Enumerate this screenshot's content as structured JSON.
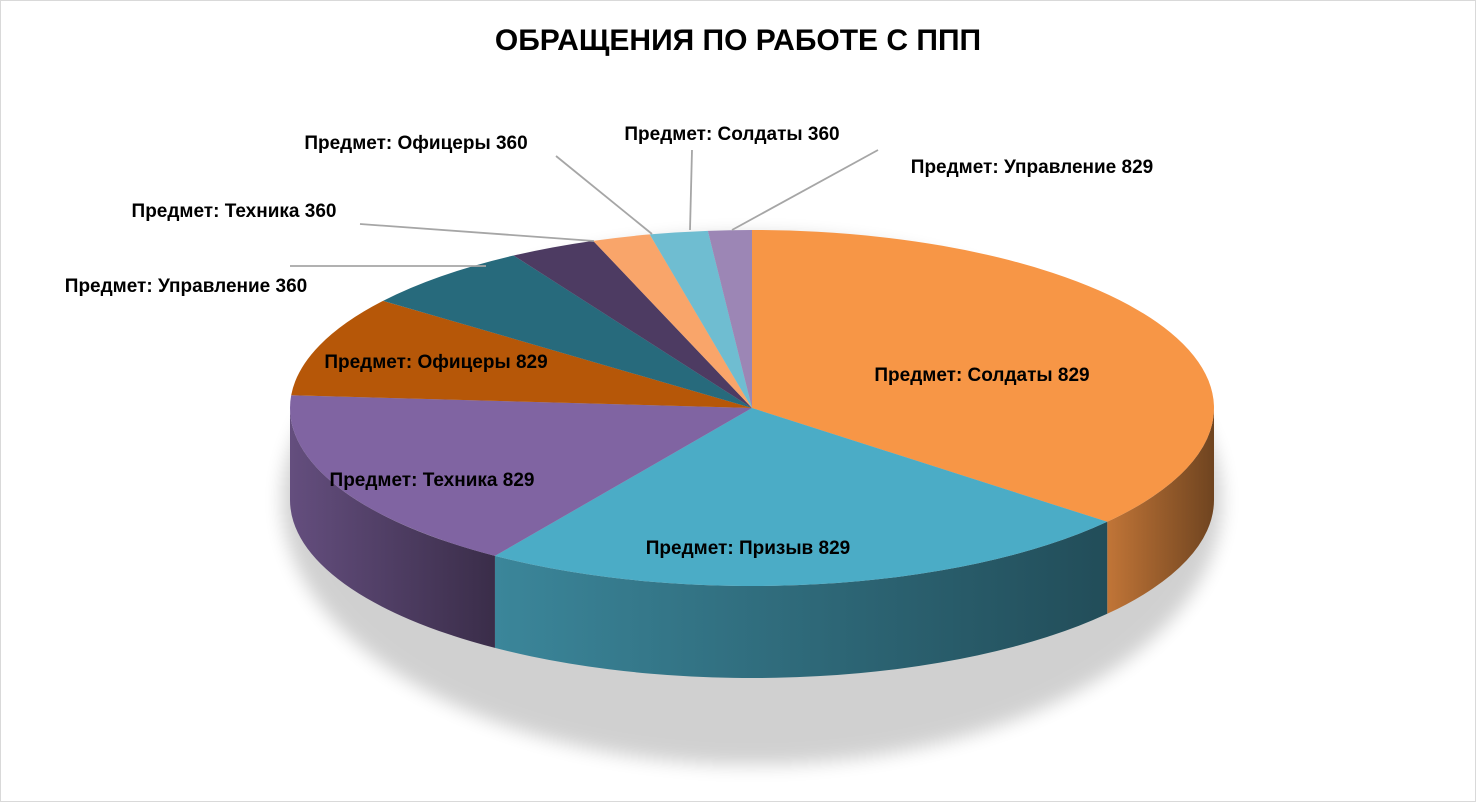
{
  "chart_data": {
    "type": "pie",
    "title": "ОБРАЩЕНИЯ ПО РАБОТЕ С ППП",
    "legend": "none",
    "slices": [
      {
        "label": "Предмет: Солдаты 829",
        "value": 0.355,
        "color": "#F79646"
      },
      {
        "label": "Предмет: Призыв 829",
        "value": 0.23,
        "color": "#4BACC6"
      },
      {
        "label": "Предмет: Техника 829",
        "value": 0.165,
        "color": "#8064A2"
      },
      {
        "label": "Предмет: Офицеры 829",
        "value": 0.09,
        "color": "#B65708"
      },
      {
        "label": "Предмет: Управление 360",
        "value": 0.06,
        "color": "#276A7C"
      },
      {
        "label": "Предмет: Техника 360",
        "value": 0.03,
        "color": "#4D3B62"
      },
      {
        "label": "Предмет: Офицеры 360",
        "value": 0.02,
        "color": "#F9A56A"
      },
      {
        "label": "Предмет: Солдаты 360",
        "value": 0.02,
        "color": "#6FBDD1"
      },
      {
        "label": "Предмет: Управление 829",
        "value": 0.015,
        "color": "#9C86B5"
      }
    ]
  }
}
